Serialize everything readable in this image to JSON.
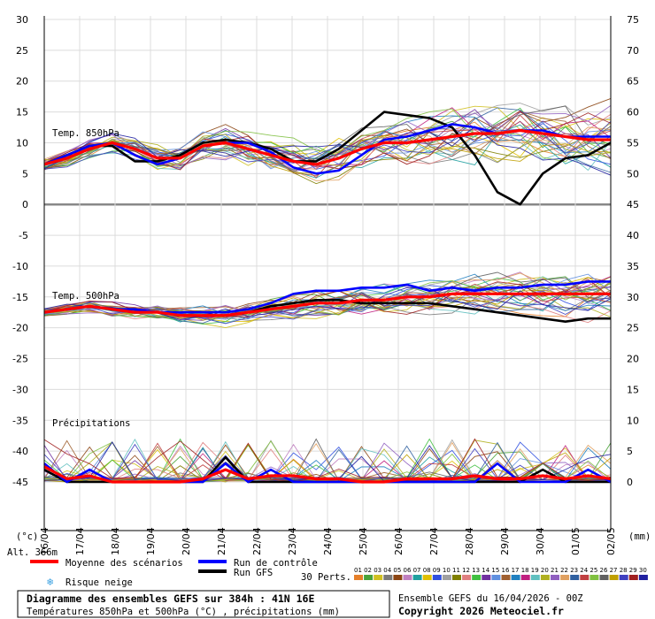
{
  "chart_data": {
    "type": "line",
    "title": "Diagramme des ensembles GEFS sur 384h : 41N 16E",
    "subtitle": "Températures 850hPa et 500hPa (°C) , précipitations (mm)",
    "left_axis": {
      "unit": "(°c)",
      "ticks": [
        30,
        25,
        20,
        15,
        10,
        5,
        0,
        -5,
        -10,
        -15,
        -20,
        -25,
        -30,
        -35,
        -40,
        -45
      ],
      "ylim": [
        -45,
        30
      ]
    },
    "right_axis": {
      "unit": "(mm)",
      "ticks": [
        75,
        70,
        65,
        60,
        55,
        50,
        45,
        40,
        35,
        30,
        25,
        20,
        15,
        10,
        5,
        0
      ]
    },
    "x_ticks": [
      "17/04",
      "18/04",
      "19/04",
      "20/04",
      "21/04",
      "22/04",
      "23/04",
      "24/04",
      "25/04",
      "26/04",
      "27/04",
      "28/04",
      "29/04",
      "30/04",
      "01/05",
      "02/05"
    ],
    "x_first_label": "16/04",
    "altitude_label": "Alt. 366m",
    "panels": [
      {
        "label": "Temp. 850hPa",
        "series": [
          {
            "name": "Moyenne des scénarios",
            "color": "#ff0000",
            "values": [
              6.5,
              7.5,
              9,
              10,
              9,
              7.5,
              7.5,
              9.5,
              10,
              9,
              8,
              7,
              6.5,
              7.5,
              9,
              10,
              10,
              10.5,
              11,
              11.5,
              11.5,
              12,
              11.5,
              11,
              10.5,
              10.5
            ]
          },
          {
            "name": "Run de contrôle",
            "color": "#0000ff",
            "values": [
              6.5,
              8,
              9.5,
              10,
              8,
              6.5,
              7.5,
              9.5,
              10,
              10,
              8.5,
              6,
              5,
              5.5,
              8,
              10.5,
              11,
              12,
              13,
              12.5,
              11.5,
              12,
              12,
              11,
              11,
              11
            ]
          },
          {
            "name": "Run GFS",
            "color": "#000000",
            "values": [
              6.5,
              8,
              9.5,
              9.5,
              7,
              7,
              8,
              10,
              10.5,
              10,
              9,
              7,
              7,
              9,
              12,
              15,
              14.5,
              14,
              12.5,
              8,
              2,
              0,
              5,
              7.5,
              8,
              10
            ]
          }
        ]
      },
      {
        "label": "Temp. 500hPa",
        "series": [
          {
            "name": "Moyenne des scénarios",
            "color": "#ff0000",
            "values": [
              -17.5,
              -17,
              -16.5,
              -17,
              -17.5,
              -17.5,
              -18,
              -18,
              -18,
              -17.5,
              -17,
              -16.5,
              -16,
              -16,
              -15.5,
              -15.5,
              -15,
              -15,
              -14.5,
              -14.5,
              -14.5,
              -14.5,
              -14.5,
              -14.5,
              -14.5,
              -14.5
            ]
          },
          {
            "name": "Run de contrôle",
            "color": "#0000ff",
            "values": [
              -17.5,
              -17,
              -16.5,
              -17,
              -17,
              -17.5,
              -17.5,
              -17.5,
              -17.5,
              -17,
              -16,
              -14.5,
              -14,
              -14,
              -13.5,
              -13.5,
              -13,
              -14,
              -13.5,
              -14,
              -13.5,
              -13.5,
              -13,
              -13,
              -12.5,
              -12.5
            ]
          },
          {
            "name": "Run GFS",
            "color": "#000000",
            "values": [
              -17.5,
              -17,
              -16.5,
              -17,
              -17.5,
              -17.5,
              -18,
              -18,
              -18,
              -17.5,
              -16.5,
              -16,
              -15.5,
              -15.5,
              -16,
              -16,
              -16,
              -16,
              -16.5,
              -17,
              -17.5,
              -18,
              -18.5,
              -19,
              -18.5,
              -18.5
            ]
          }
        ]
      },
      {
        "label": "Précipitations",
        "unit": "mm",
        "series": [
          {
            "name": "Moyenne des scénarios",
            "color": "#ff0000",
            "values": [
              2.5,
              0.5,
              1,
              0,
              0,
              0,
              0,
              0.5,
              2,
              0.5,
              1,
              1,
              0.5,
              0.5,
              0,
              0,
              0.5,
              0.5,
              0.5,
              1,
              0.5,
              0.5,
              1,
              0.5,
              1,
              0.5
            ]
          },
          {
            "name": "Run de contrôle",
            "color": "#0000ff",
            "values": [
              3,
              0,
              2,
              0,
              0,
              0,
              0,
              0,
              3,
              0,
              2,
              0,
              0,
              0,
              0,
              0,
              0,
              0,
              0,
              0,
              3,
              0,
              0,
              0,
              2,
              0
            ]
          },
          {
            "name": "Run GFS",
            "color": "#000000",
            "values": [
              2,
              0,
              0,
              0,
              0,
              0,
              0,
              0,
              4,
              0,
              0,
              0,
              0,
              0,
              0,
              0,
              0,
              0,
              0,
              0,
              0,
              0,
              2,
              0,
              0,
              0
            ]
          }
        ]
      }
    ],
    "perturbations": {
      "label": "30 Perts.",
      "ids": [
        "01",
        "02",
        "03",
        "04",
        "05",
        "06",
        "07",
        "08",
        "09",
        "10",
        "11",
        "12",
        "13",
        "14",
        "15",
        "16",
        "17",
        "18",
        "19",
        "20",
        "21",
        "22",
        "23",
        "24",
        "25",
        "26",
        "27",
        "28",
        "29",
        "30"
      ],
      "colors": [
        "#e6802a",
        "#4aa33a",
        "#d0c020",
        "#7a7a7a",
        "#8b4513",
        "#c080c0",
        "#20a0a0",
        "#e0c000",
        "#3050e0",
        "#a0a0a0",
        "#808000",
        "#e08080",
        "#40c040",
        "#7030a0",
        "#6090e0",
        "#a06030",
        "#2080c0",
        "#c02080",
        "#60c0c0",
        "#b0b020",
        "#9060c0",
        "#e0a060",
        "#3060a0",
        "#c04040",
        "#80c040",
        "#606060",
        "#c0a000",
        "#4040c0",
        "#a02020",
        "#2020a0"
      ]
    },
    "legend": {
      "mean": "Moyenne des scénarios",
      "control": "Run de contrôle",
      "gfs": "Run GFS",
      "snow": "Risque neige"
    },
    "info": {
      "ensemble": "Ensemble GEFS du 16/04/2026 - 00Z",
      "copyright": "Copyright 2026 Meteociel.fr"
    },
    "grid": true
  }
}
